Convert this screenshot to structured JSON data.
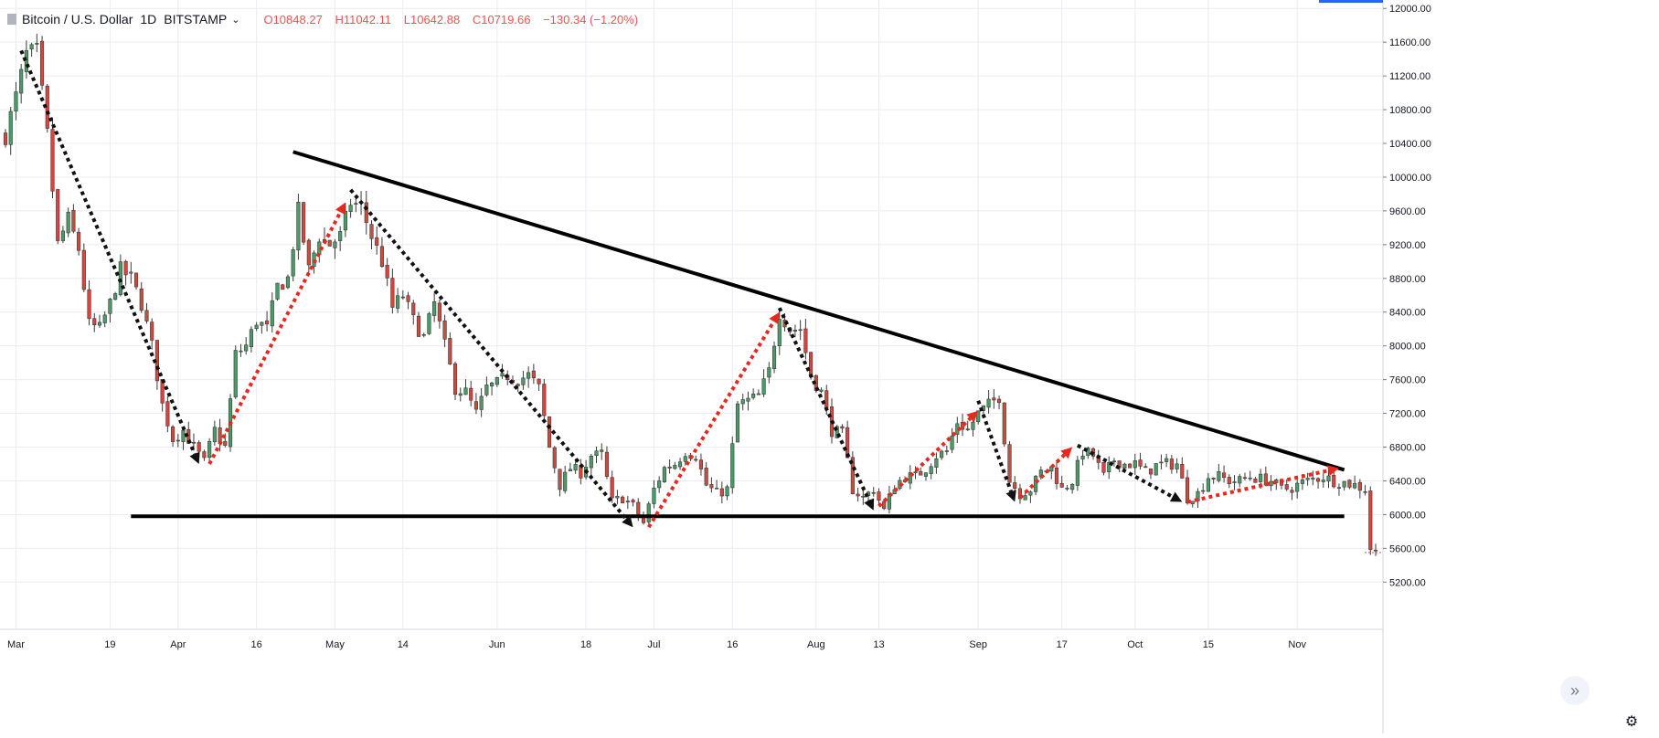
{
  "legend": {
    "title": "Bitcoin / U.S. Dollar",
    "interval": "1D",
    "exchange": "BITSTAMP",
    "open": "O10848.27",
    "high": "H11042.11",
    "low": "L10642.88",
    "close": "C10719.66",
    "change": "−130.34 (−1.20%)"
  },
  "colors": {
    "up": "#4c9a68",
    "down": "#d0493d",
    "grid": "#e9ecf2",
    "text": "#131722",
    "arrow_up": "#e8281e",
    "arrow_down": "#111111"
  },
  "icons": {
    "collapse": "double-chevron-right-icon",
    "settings": "gear-icon"
  },
  "chart_data": {
    "type": "candlestick",
    "title": "Bitcoin / U.S. Dollar",
    "y_axis": {
      "ylim": [
        4900,
        12100
      ],
      "ticks": [
        5200,
        5600,
        6000,
        6400,
        6800,
        7200,
        7600,
        8000,
        8400,
        8800,
        9200,
        9600,
        10000,
        10400,
        10800,
        11200,
        11600,
        12000
      ],
      "tick_labels": [
        "5200.00",
        "5600.00",
        "6000.00",
        "6400.00",
        "6800.00",
        "7200.00",
        "7600.00",
        "8000.00",
        "8400.00",
        "8800.00",
        "9200.00",
        "9600.00",
        "10000.00",
        "10400.00",
        "10800.00",
        "11200.00",
        "11600.00",
        "12000.00"
      ]
    },
    "x_axis": {
      "start": "2018-02-27",
      "end": "2018-11-16",
      "ticks": [
        {
          "date": "2018-03-01",
          "label": "Mar"
        },
        {
          "date": "2018-03-19",
          "label": "19"
        },
        {
          "date": "2018-04-01",
          "label": "Apr"
        },
        {
          "date": "2018-04-16",
          "label": "16"
        },
        {
          "date": "2018-05-01",
          "label": "May"
        },
        {
          "date": "2018-05-14",
          "label": "14"
        },
        {
          "date": "2018-06-01",
          "label": "Jun"
        },
        {
          "date": "2018-06-18",
          "label": "18"
        },
        {
          "date": "2018-07-01",
          "label": "Jul"
        },
        {
          "date": "2018-07-16",
          "label": "16"
        },
        {
          "date": "2018-08-01",
          "label": "Aug"
        },
        {
          "date": "2018-08-13",
          "label": "13"
        },
        {
          "date": "2018-09-01",
          "label": "Sep"
        },
        {
          "date": "2018-09-17",
          "label": "17"
        },
        {
          "date": "2018-10-01",
          "label": "Oct"
        },
        {
          "date": "2018-10-15",
          "label": "15"
        },
        {
          "date": "2018-11-01",
          "label": "Nov"
        }
      ]
    },
    "price_path": [
      [
        "2018-02-27",
        10500
      ],
      [
        "2018-03-01",
        10950
      ],
      [
        "2018-03-03",
        11450
      ],
      [
        "2018-03-05",
        11480
      ],
      [
        "2018-03-07",
        10500
      ],
      [
        "2018-03-09",
        9200
      ],
      [
        "2018-03-11",
        9500
      ],
      [
        "2018-03-13",
        9150
      ],
      [
        "2018-03-15",
        8250
      ],
      [
        "2018-03-17",
        8200
      ],
      [
        "2018-03-19",
        8500
      ],
      [
        "2018-03-21",
        8900
      ],
      [
        "2018-03-23",
        8800
      ],
      [
        "2018-03-25",
        8500
      ],
      [
        "2018-03-27",
        8000
      ],
      [
        "2018-03-29",
        7300
      ],
      [
        "2018-03-31",
        6900
      ],
      [
        "2018-04-02",
        7000
      ],
      [
        "2018-04-04",
        6800
      ],
      [
        "2018-04-06",
        6620
      ],
      [
        "2018-04-08",
        7000
      ],
      [
        "2018-04-10",
        6800
      ],
      [
        "2018-04-12",
        7900
      ],
      [
        "2018-04-14",
        8000
      ],
      [
        "2018-04-16",
        8300
      ],
      [
        "2018-04-18",
        8200
      ],
      [
        "2018-04-20",
        8700
      ],
      [
        "2018-04-22",
        8800
      ],
      [
        "2018-04-24",
        9600
      ],
      [
        "2018-04-26",
        8900
      ],
      [
        "2018-04-28",
        9300
      ],
      [
        "2018-04-30",
        9200
      ],
      [
        "2018-05-02",
        9300
      ],
      [
        "2018-05-04",
        9700
      ],
      [
        "2018-05-06",
        9650
      ],
      [
        "2018-05-08",
        9300
      ],
      [
        "2018-05-10",
        9000
      ],
      [
        "2018-05-12",
        8450
      ],
      [
        "2018-05-14",
        8600
      ],
      [
        "2018-05-16",
        8300
      ],
      [
        "2018-05-18",
        8100
      ],
      [
        "2018-05-20",
        8500
      ],
      [
        "2018-05-22",
        8000
      ],
      [
        "2018-05-24",
        7500
      ],
      [
        "2018-05-26",
        7450
      ],
      [
        "2018-05-28",
        7200
      ],
      [
        "2018-05-30",
        7500
      ],
      [
        "2018-06-01",
        7550
      ],
      [
        "2018-06-03",
        7650
      ],
      [
        "2018-06-05",
        7600
      ],
      [
        "2018-06-07",
        7650
      ],
      [
        "2018-06-09",
        7500
      ],
      [
        "2018-06-11",
        6800
      ],
      [
        "2018-06-13",
        6350
      ],
      [
        "2018-06-15",
        6550
      ],
      [
        "2018-06-17",
        6500
      ],
      [
        "2018-06-19",
        6700
      ],
      [
        "2018-06-21",
        6700
      ],
      [
        "2018-06-23",
        6150
      ],
      [
        "2018-06-25",
        6200
      ],
      [
        "2018-06-27",
        6100
      ],
      [
        "2018-06-29",
        5900
      ],
      [
        "2018-07-01",
        6300
      ],
      [
        "2018-07-03",
        6550
      ],
      [
        "2018-07-05",
        6600
      ],
      [
        "2018-07-07",
        6750
      ],
      [
        "2018-07-09",
        6700
      ],
      [
        "2018-07-11",
        6350
      ],
      [
        "2018-07-13",
        6250
      ],
      [
        "2018-07-15",
        6300
      ],
      [
        "2018-07-17",
        7300
      ],
      [
        "2018-07-19",
        7350
      ],
      [
        "2018-07-21",
        7400
      ],
      [
        "2018-07-23",
        7700
      ],
      [
        "2018-07-25",
        8400
      ],
      [
        "2018-07-27",
        8200
      ],
      [
        "2018-07-29",
        8200
      ],
      [
        "2018-07-31",
        7650
      ],
      [
        "2018-08-02",
        7450
      ],
      [
        "2018-08-04",
        7000
      ],
      [
        "2018-08-06",
        6950
      ],
      [
        "2018-08-08",
        6300
      ],
      [
        "2018-08-10",
        6200
      ],
      [
        "2018-08-12",
        6300
      ],
      [
        "2018-08-14",
        6050
      ],
      [
        "2018-08-16",
        6350
      ],
      [
        "2018-08-18",
        6450
      ],
      [
        "2018-08-20",
        6450
      ],
      [
        "2018-08-22",
        6550
      ],
      [
        "2018-08-24",
        6700
      ],
      [
        "2018-08-26",
        6750
      ],
      [
        "2018-08-28",
        7100
      ],
      [
        "2018-08-30",
        7000
      ],
      [
        "2018-09-01",
        7200
      ],
      [
        "2018-09-03",
        7300
      ],
      [
        "2018-09-05",
        7400
      ],
      [
        "2018-09-07",
        6400
      ],
      [
        "2018-09-09",
        6250
      ],
      [
        "2018-09-11",
        6300
      ],
      [
        "2018-09-13",
        6500
      ],
      [
        "2018-09-15",
        6550
      ],
      [
        "2018-09-17",
        6300
      ],
      [
        "2018-09-19",
        6400
      ],
      [
        "2018-09-21",
        6750
      ],
      [
        "2018-09-23",
        6700
      ],
      [
        "2018-09-25",
        6450
      ],
      [
        "2018-09-27",
        6650
      ],
      [
        "2018-09-29",
        6600
      ],
      [
        "2018-10-01",
        6600
      ],
      [
        "2018-10-03",
        6500
      ],
      [
        "2018-10-05",
        6580
      ],
      [
        "2018-10-07",
        6600
      ],
      [
        "2018-10-09",
        6600
      ],
      [
        "2018-10-11",
        6200
      ],
      [
        "2018-10-13",
        6250
      ],
      [
        "2018-10-15",
        6450
      ],
      [
        "2018-10-17",
        6450
      ],
      [
        "2018-10-19",
        6400
      ],
      [
        "2018-10-21",
        6400
      ],
      [
        "2018-10-23",
        6450
      ],
      [
        "2018-10-25",
        6420
      ],
      [
        "2018-10-27",
        6400
      ],
      [
        "2018-10-29",
        6300
      ],
      [
        "2018-10-31",
        6320
      ],
      [
        "2018-11-02",
        6380
      ],
      [
        "2018-11-04",
        6420
      ],
      [
        "2018-11-06",
        6450
      ],
      [
        "2018-11-08",
        6400
      ],
      [
        "2018-11-10",
        6380
      ],
      [
        "2018-11-12",
        6350
      ],
      [
        "2018-11-14",
        6300
      ],
      [
        "2018-11-15",
        5600
      ],
      [
        "2018-11-16",
        5550
      ]
    ],
    "trendlines": [
      {
        "name": "descending-resistance",
        "from": [
          "2018-04-23",
          10300
        ],
        "to": [
          "2018-11-10",
          6530
        ]
      },
      {
        "name": "horizontal-support",
        "from": [
          "2018-03-23",
          5980
        ],
        "to": [
          "2018-11-10",
          5980
        ]
      }
    ],
    "swing_arrows": [
      {
        "dir": "down",
        "from": [
          "2018-03-02",
          11500
        ],
        "to": [
          "2018-04-05",
          6600
        ]
      },
      {
        "dir": "up",
        "from": [
          "2018-04-07",
          6600
        ],
        "to": [
          "2018-05-03",
          9700
        ]
      },
      {
        "dir": "down",
        "from": [
          "2018-05-04",
          9850
        ],
        "to": [
          "2018-06-27",
          5850
        ]
      },
      {
        "dir": "up",
        "from": [
          "2018-06-30",
          5850
        ],
        "to": [
          "2018-07-25",
          8400
        ]
      },
      {
        "dir": "down",
        "from": [
          "2018-07-25",
          8450
        ],
        "to": [
          "2018-08-12",
          6050
        ]
      },
      {
        "dir": "up",
        "from": [
          "2018-08-13",
          6100
        ],
        "to": [
          "2018-09-01",
          7230
        ]
      },
      {
        "dir": "down",
        "from": [
          "2018-09-01",
          7350
        ],
        "to": [
          "2018-09-08",
          6150
        ]
      },
      {
        "dir": "up",
        "from": [
          "2018-09-09",
          6200
        ],
        "to": [
          "2018-09-19",
          6800
        ]
      },
      {
        "dir": "down",
        "from": [
          "2018-09-20",
          6820
        ],
        "to": [
          "2018-10-10",
          6150
        ]
      },
      {
        "dir": "up",
        "from": [
          "2018-10-11",
          6150
        ],
        "to": [
          "2018-11-09",
          6550
        ]
      }
    ]
  }
}
